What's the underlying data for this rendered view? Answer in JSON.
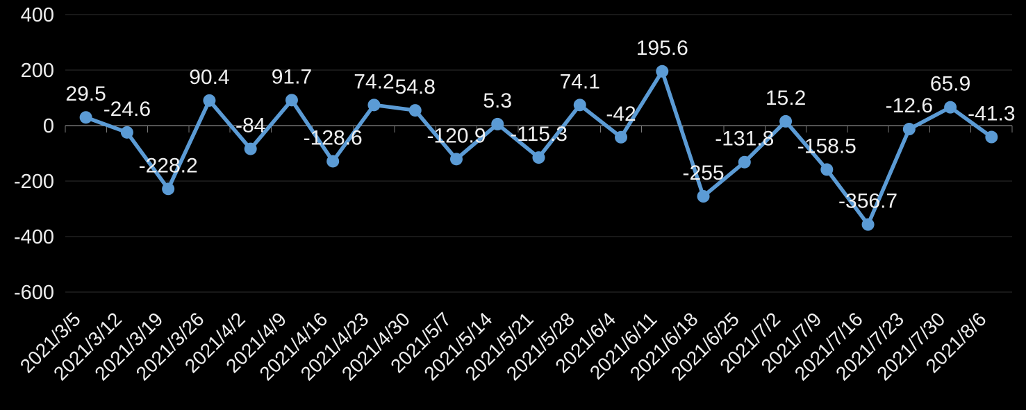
{
  "chart_data": {
    "type": "line",
    "title": "",
    "xlabel": "",
    "ylabel": "",
    "x": [
      "2021/3/5",
      "2021/3/12",
      "2021/3/19",
      "2021/3/26",
      "2021/4/2",
      "2021/4/9",
      "2021/4/16",
      "2021/4/23",
      "2021/4/30",
      "2021/5/7",
      "2021/5/14",
      "2021/5/21",
      "2021/5/28",
      "2021/6/4",
      "2021/6/11",
      "2021/6/18",
      "2021/6/25",
      "2021/7/2",
      "2021/7/9",
      "2021/7/16",
      "2021/7/23",
      "2021/7/30",
      "2021/8/6"
    ],
    "values": [
      29.5,
      -24.6,
      -228.2,
      90.4,
      -84,
      91.7,
      -128.6,
      74.2,
      54.8,
      -120.9,
      5.3,
      -115.3,
      74.1,
      -42,
      195.6,
      -255,
      -131.8,
      15.2,
      -158.5,
      -356.7,
      -12.6,
      65.9,
      -41.3
    ],
    "y_ticks": [
      400,
      200,
      0,
      -200,
      -400,
      -600
    ],
    "ylim": [
      -600,
      400
    ],
    "grid": true,
    "legend_position": "none",
    "data_labels": true,
    "x_label_rotation": -45
  },
  "colors": {
    "background": "#000000",
    "series_line": "#5B9BD5",
    "marker_fill": "#5B9BD5",
    "label_text": "#F0F0F0",
    "axis_text": "#EDEDED",
    "gridline": "#303030",
    "axis_line": "#787878"
  }
}
